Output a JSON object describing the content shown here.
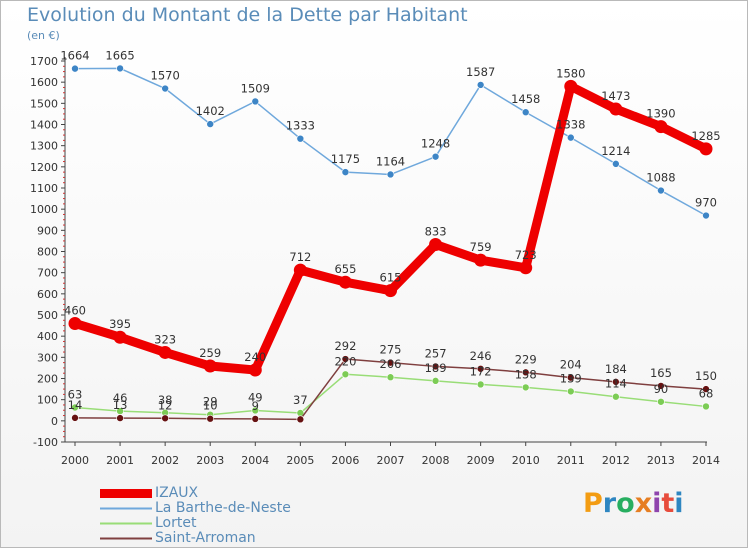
{
  "header": {
    "title": "Evolution du Montant de la Dette par Habitant",
    "unit": "(en €)"
  },
  "logo": {
    "text": "Proxiti",
    "colors": [
      "#f39c12",
      "#2e86c1",
      "#27ae60",
      "#e67e22",
      "#8e44ad",
      "#e74c3c",
      "#2e86c1"
    ]
  },
  "chart_data": {
    "type": "line",
    "title": "Evolution du Montant de la Dette par Habitant",
    "ylabel": "(en €)",
    "xlabel": "",
    "ylim": [
      -100,
      1700
    ],
    "yticks": [
      -100,
      0,
      100,
      200,
      300,
      400,
      500,
      600,
      700,
      800,
      900,
      1000,
      1100,
      1200,
      1300,
      1400,
      1500,
      1600,
      1700
    ],
    "x": [
      "2000",
      "2001",
      "2002",
      "2003",
      "2004",
      "2005",
      "2006",
      "2007",
      "2008",
      "2009",
      "2010",
      "2011",
      "2012",
      "2013",
      "2014"
    ],
    "grid": false,
    "legend": "bottom-left",
    "series": [
      {
        "name": "IZAUX",
        "color": "#ee0000",
        "marker": "#ee0000",
        "values": [
          460,
          395,
          323,
          259,
          240,
          712,
          655,
          615,
          833,
          759,
          723,
          1580,
          1473,
          1390,
          1285
        ],
        "labels": [
          "460",
          "395",
          "323",
          "259",
          "240",
          "712",
          "655",
          "615",
          "833",
          "759",
          "723",
          "1580",
          "1473",
          "1390",
          "1285"
        ]
      },
      {
        "name": "La Barthe-de-Neste",
        "color": "#6fa8dc",
        "marker": "#3d85c6",
        "values": [
          1664,
          1665,
          1570,
          1402,
          1509,
          1333,
          1175,
          1164,
          1248,
          1587,
          1458,
          1338,
          1214,
          1088,
          970
        ],
        "labels": [
          "1664",
          "1665",
          "1570",
          "1402",
          "1509",
          "1333",
          "1175",
          "1164",
          "1248",
          "1587",
          "1458",
          "1338",
          "1214",
          "1088",
          "970"
        ]
      },
      {
        "name": "Lortet",
        "color": "#99dd77",
        "marker": "#7ccc55",
        "values": [
          63,
          46,
          38,
          29,
          49,
          37,
          220,
          206,
          189,
          172,
          158,
          139,
          114,
          90,
          68
        ],
        "labels": [
          "63",
          "46",
          "38",
          "29",
          "49",
          "37",
          "220",
          "206",
          "189",
          "172",
          "158",
          "139",
          "114",
          "90",
          "68"
        ]
      },
      {
        "name": "Saint-Arroman",
        "color": "#7f3f3f",
        "marker": "#661111",
        "values": [
          14,
          13,
          12,
          10,
          9,
          7,
          292,
          275,
          257,
          246,
          229,
          204,
          184,
          165,
          150
        ],
        "labels": [
          "14",
          "13",
          "12",
          "10",
          "9",
          "",
          "292",
          "275",
          "257",
          "246",
          "229",
          "204",
          "184",
          "165",
          "150"
        ]
      }
    ]
  }
}
